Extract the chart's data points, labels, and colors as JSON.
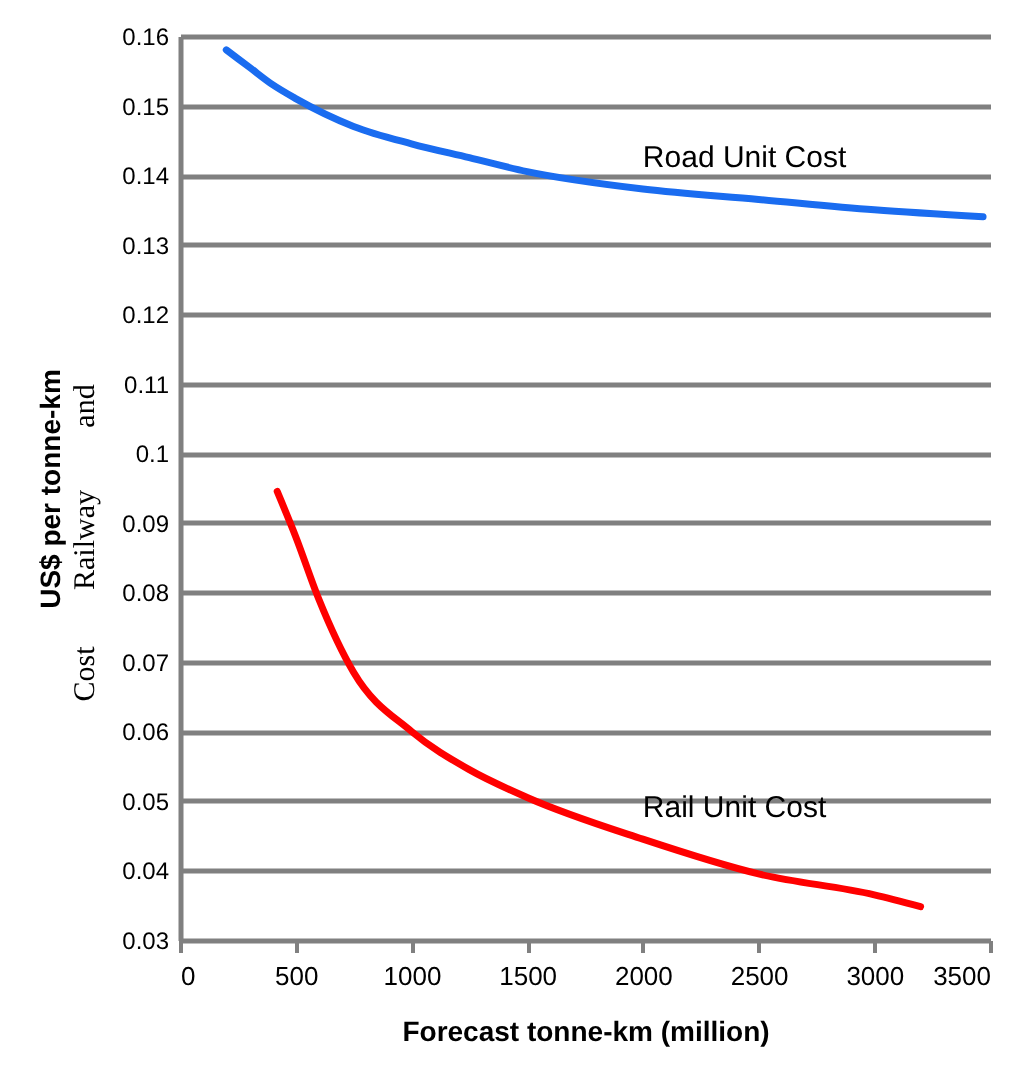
{
  "chart_data": {
    "type": "line",
    "xlabel": "Forecast tonne-km (million)",
    "ylabel": "US$ per tonne-km",
    "xlim": [
      0,
      3500
    ],
    "xticks": [
      0,
      500,
      1000,
      1500,
      2000,
      2500,
      3000,
      3500
    ],
    "ylim": [
      0.03,
      0.16
    ],
    "yticks": [
      0.03,
      0.04,
      0.05,
      0.06,
      0.07,
      0.08,
      0.09,
      0.1,
      0.11,
      0.12,
      0.13,
      0.14,
      0.15,
      0.16
    ],
    "grid": "y",
    "legend": false,
    "marker": "none",
    "line_style": "solid",
    "series": [
      {
        "name": "Road Unit Cost",
        "color": "#1a6cf0",
        "x": [
          200,
          300,
          400,
          500,
          750,
          1000,
          1250,
          1500,
          2000,
          2500,
          3000,
          3470
        ],
        "values": [
          0.158,
          0.1555,
          0.153,
          0.151,
          0.147,
          0.1445,
          0.1425,
          0.1405,
          0.138,
          0.1365,
          0.135,
          0.134
        ]
      },
      {
        "name": "Rail Unit Cost",
        "color": "#ff0000",
        "x": [
          420,
          500,
          600,
          750,
          1000,
          1250,
          1500,
          2000,
          2500,
          3000,
          3200
        ],
        "values": [
          0.0945,
          0.088,
          0.079,
          0.0685,
          0.06,
          0.0545,
          0.0505,
          0.0445,
          0.0395,
          0.0365,
          0.0348
        ]
      }
    ],
    "annotations": [
      "and",
      "Railway",
      "Cost"
    ]
  }
}
